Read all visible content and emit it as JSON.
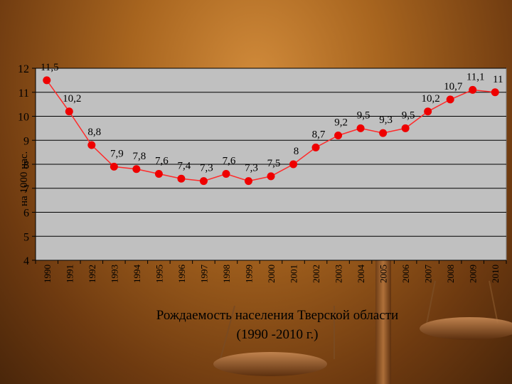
{
  "chart_data": {
    "type": "line",
    "title": "Рождаемость населения Тверской области",
    "subtitle": "(1990 -2010 г.)",
    "xlabel": "",
    "ylabel": "на 1000 нас.",
    "x": [
      "1990",
      "1991",
      "1992",
      "1993",
      "1994",
      "1995",
      "1996",
      "1997",
      "1998",
      "1999",
      "2000",
      "2001",
      "2002",
      "2003",
      "2004",
      "2005",
      "2006",
      "2007",
      "2008",
      "2009",
      "2010"
    ],
    "values": [
      11.5,
      10.2,
      8.8,
      7.9,
      7.8,
      7.6,
      7.4,
      7.3,
      7.6,
      7.3,
      7.5,
      8,
      8.7,
      9.2,
      9.5,
      9.3,
      9.5,
      10.2,
      10.7,
      11.1,
      11
    ],
    "data_labels": [
      "11,5",
      "10,2",
      "8,8",
      "7,9",
      "7,8",
      "7,6",
      "7,4",
      "7,3",
      "7,6",
      "7,3",
      "7,5",
      "8",
      "8,7",
      "9,2",
      "9,5",
      "9,3",
      "9,5",
      "10,2",
      "10,7",
      "11,1",
      "11"
    ],
    "ylim": [
      4,
      12
    ],
    "yticks": [
      4,
      5,
      6,
      7,
      8,
      9,
      10,
      11,
      12
    ],
    "grid": true,
    "legend": "none",
    "colors": {
      "line": "#ff2a2a",
      "marker": "#ee0000",
      "plot_bg": "#c0c0c0",
      "grid": "#000000"
    }
  }
}
